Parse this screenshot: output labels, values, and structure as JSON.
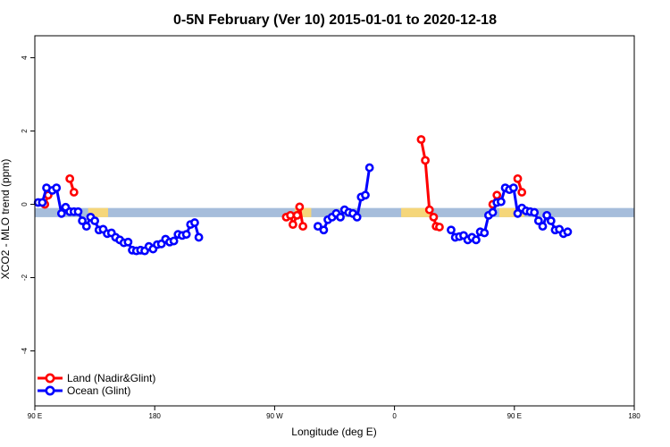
{
  "chart_data": {
    "type": "line",
    "title": "0-5N February (Ver 10)   2015-01-01 to 2020-12-18",
    "xlabel": "Longitude (deg E)",
    "ylabel": "XCO2 - MLO trend (ppm)",
    "xlim": [
      90,
      450
    ],
    "ylim": [
      -5.5,
      4.6
    ],
    "x_ticks": [
      90,
      180,
      270,
      360,
      450
    ],
    "x_tick_labels": [
      "90 E",
      "180",
      "90 W",
      "0",
      "90 E",
      "180"
    ],
    "x_tick_values": [
      90,
      162,
      234,
      306,
      378,
      450
    ],
    "y_ticks": [
      -4,
      -2,
      0,
      2,
      4
    ],
    "y_tick_labels": [
      "-4",
      "-2",
      "0",
      "2",
      "4"
    ],
    "band": {
      "y_min": -0.35,
      "y_max": -0.1,
      "color": "#a6bddb"
    },
    "land_segments": [
      [
        122,
        134
      ],
      [
        246,
        256
      ],
      [
        310,
        329
      ],
      [
        369,
        384
      ]
    ],
    "land_segment_color": "#f5d67a",
    "legend_position": "bottom-left",
    "series": [
      {
        "name": "Land (Nadir&Glint)",
        "color": "#ff0000",
        "segments": [
          [
            [
              96,
              0.0
            ],
            [
              98,
              0.25
            ]
          ],
          [
            [
              111,
              0.7
            ],
            [
              113.5,
              0.33
            ]
          ],
          [
            [
              241,
              -0.35
            ],
            [
              243.5,
              -0.3
            ],
            [
              245,
              -0.55
            ],
            [
              247.5,
              -0.3
            ],
            [
              249,
              -0.07
            ],
            [
              251,
              -0.6
            ]
          ],
          [
            [
              322,
              1.77
            ],
            [
              324.5,
              1.2
            ],
            [
              327,
              -0.15
            ],
            [
              329.5,
              -0.35
            ],
            [
              331,
              -0.6
            ],
            [
              333,
              -0.62
            ]
          ],
          [
            [
              365,
              0.0
            ],
            [
              367.5,
              0.25
            ]
          ],
          [
            [
              380,
              0.7
            ],
            [
              382.5,
              0.33
            ]
          ]
        ]
      },
      {
        "name": "Ocean (Glint)",
        "color": "#0000ff",
        "segments": [
          [
            [
              92,
              0.05
            ],
            [
              94.5,
              0.05
            ],
            [
              97,
              0.45
            ],
            [
              100.5,
              0.38
            ],
            [
              103,
              0.45
            ],
            [
              106,
              -0.25
            ],
            [
              108.5,
              -0.08
            ],
            [
              111,
              -0.2
            ],
            [
              113.5,
              -0.2
            ],
            [
              116,
              -0.2
            ],
            [
              118.5,
              -0.45
            ],
            [
              121,
              -0.6
            ],
            [
              123.5,
              -0.35
            ],
            [
              126,
              -0.45
            ],
            [
              128.5,
              -0.7
            ],
            [
              131,
              -0.68
            ],
            [
              133.5,
              -0.8
            ],
            [
              136,
              -0.78
            ],
            [
              138.5,
              -0.9
            ],
            [
              141,
              -0.97
            ],
            [
              143.5,
              -1.05
            ],
            [
              146,
              -1.03
            ],
            [
              148.5,
              -1.25
            ],
            [
              151,
              -1.27
            ],
            [
              153.5,
              -1.25
            ],
            [
              156,
              -1.27
            ],
            [
              158.5,
              -1.15
            ],
            [
              161,
              -1.22
            ],
            [
              163.5,
              -1.1
            ],
            [
              166,
              -1.08
            ],
            [
              168.5,
              -0.95
            ],
            [
              171,
              -1.03
            ],
            [
              173.5,
              -1.0
            ],
            [
              176,
              -0.82
            ],
            [
              178.5,
              -0.85
            ],
            [
              181,
              -0.82
            ],
            [
              183.5,
              -0.55
            ],
            [
              186,
              -0.5
            ],
            [
              188.5,
              -0.9
            ]
          ],
          [
            [
              260,
              -0.6
            ],
            [
              263.5,
              -0.7
            ],
            [
              266,
              -0.42
            ],
            [
              268.5,
              -0.35
            ],
            [
              271,
              -0.25
            ],
            [
              273.5,
              -0.35
            ],
            [
              276,
              -0.15
            ],
            [
              278.5,
              -0.22
            ],
            [
              281,
              -0.25
            ],
            [
              283.5,
              -0.35
            ],
            [
              286,
              0.2
            ],
            [
              288.5,
              0.25
            ],
            [
              291,
              1.0
            ]
          ],
          [
            [
              340,
              -0.7
            ],
            [
              342.5,
              -0.9
            ],
            [
              345,
              -0.88
            ],
            [
              347.5,
              -0.85
            ],
            [
              350,
              -0.97
            ],
            [
              352.5,
              -0.9
            ],
            [
              355,
              -0.97
            ],
            [
              357.5,
              -0.75
            ],
            [
              360,
              -0.78
            ],
            [
              362.5,
              -0.3
            ],
            [
              365,
              -0.22
            ],
            [
              367.5,
              0.05
            ],
            [
              370,
              0.07
            ],
            [
              372.5,
              0.45
            ],
            [
              375,
              0.4
            ],
            [
              377.5,
              0.45
            ],
            [
              380,
              -0.25
            ],
            [
              382.5,
              -0.1
            ],
            [
              385,
              -0.18
            ],
            [
              387.5,
              -0.2
            ],
            [
              390,
              -0.22
            ],
            [
              392.5,
              -0.45
            ],
            [
              395,
              -0.6
            ],
            [
              397.5,
              -0.3
            ],
            [
              400,
              -0.45
            ],
            [
              402.5,
              -0.7
            ],
            [
              405,
              -0.68
            ],
            [
              407.5,
              -0.8
            ],
            [
              410,
              -0.75
            ]
          ]
        ]
      }
    ]
  }
}
